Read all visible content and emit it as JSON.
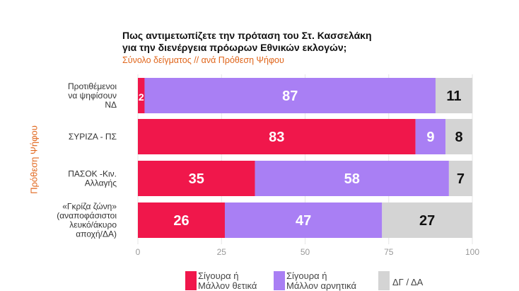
{
  "chart_data": {
    "type": "bar",
    "orientation": "horizontal",
    "stacked": true,
    "title": [
      "Πως αντιμετωπίζετε την πρόταση του Στ. Κασσελάκη",
      "για την διενέργεια πρόωρων Εθνικών εκλογών;"
    ],
    "subtitle": "Σύνολο δείγματος // ανά Πρόθεση Ψήφου",
    "ylabel": "Πρόθεση Ψήφου",
    "categories": [
      [
        "Προτιθέμενοι",
        "να ψηφίσουν",
        "ΝΔ"
      ],
      [
        "ΣΥΡΙΖΑ - ΠΣ"
      ],
      [
        "ΠΑΣΟΚ -Κιν.",
        "Αλλαγής"
      ],
      [
        "«Γκρίζα ζώνη»",
        "(αναποφάσιστοι",
        "λευκό/άκυρο",
        "αποχή/ΔΑ)"
      ]
    ],
    "series": [
      {
        "name": "Σίγουρα ή Μάλλον θετικά",
        "color": "#f0174b",
        "values": [
          2,
          83,
          35,
          26
        ]
      },
      {
        "name": "Σίγουρα ή Μάλλον αρνητικά",
        "color": "#a97ff4",
        "values": [
          87,
          9,
          58,
          47
        ]
      },
      {
        "name": "ΔΓ / ΔΑ",
        "color": "#d4d4d4",
        "values": [
          11,
          8,
          7,
          27
        ]
      }
    ],
    "xlim": [
      0,
      100
    ],
    "xticks": [
      0,
      25,
      50,
      75,
      100
    ],
    "grid": true,
    "legend": "bottom"
  }
}
